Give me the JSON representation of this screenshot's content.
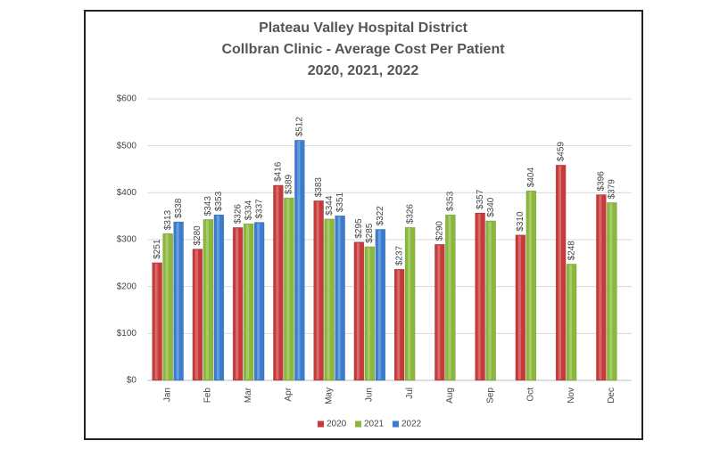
{
  "chart_data": {
    "type": "bar",
    "title": [
      "Plateau Valley Hospital District",
      "Collbran Clinic  - Average Cost Per Patient",
      "2020, 2021, 2022"
    ],
    "categories": [
      "Jan",
      "Feb",
      "Mar",
      "Apr",
      "May",
      "Jun",
      "Jul",
      "Aug",
      "Sep",
      "Oct",
      "Nov",
      "Dec"
    ],
    "series": [
      {
        "name": "2020",
        "color": "#c8393a",
        "values": [
          251,
          280,
          326,
          416,
          383,
          295,
          237,
          290,
          357,
          310,
          459,
          396
        ],
        "value_labels": [
          "$251",
          "$280",
          "$326",
          "$416",
          "$383",
          "$295",
          "$237",
          "$290",
          "$357",
          "$310",
          "$459",
          "$396"
        ]
      },
      {
        "name": "2021",
        "color": "#8ab83a",
        "values": [
          313,
          343,
          334,
          389,
          344,
          285,
          326,
          353,
          340,
          404,
          248,
          379
        ],
        "value_labels": [
          "$313",
          "$343",
          "$334",
          "$389",
          "$344",
          "$285",
          "$326",
          "$353",
          "$340",
          "$404",
          "$248",
          "$379"
        ]
      },
      {
        "name": "2022",
        "color": "#3a7dd0",
        "values": [
          338,
          353,
          337,
          512,
          351,
          322,
          null,
          null,
          null,
          null,
          null,
          null
        ],
        "value_labels": [
          "$338",
          "$353",
          "$337",
          "$512",
          "$351",
          "$322",
          null,
          null,
          null,
          null,
          null,
          null
        ]
      }
    ],
    "ylim": [
      0,
      600
    ],
    "yticks": [
      {
        "value": 0,
        "label": "$0"
      },
      {
        "value": 100,
        "label": "$100"
      },
      {
        "value": 200,
        "label": "$200"
      },
      {
        "value": 300,
        "label": "$300"
      },
      {
        "value": 400,
        "label": "$400"
      },
      {
        "value": 500,
        "label": "$500"
      },
      {
        "value": 600,
        "label": "$600"
      }
    ],
    "grid": true,
    "legend": "bottom"
  }
}
